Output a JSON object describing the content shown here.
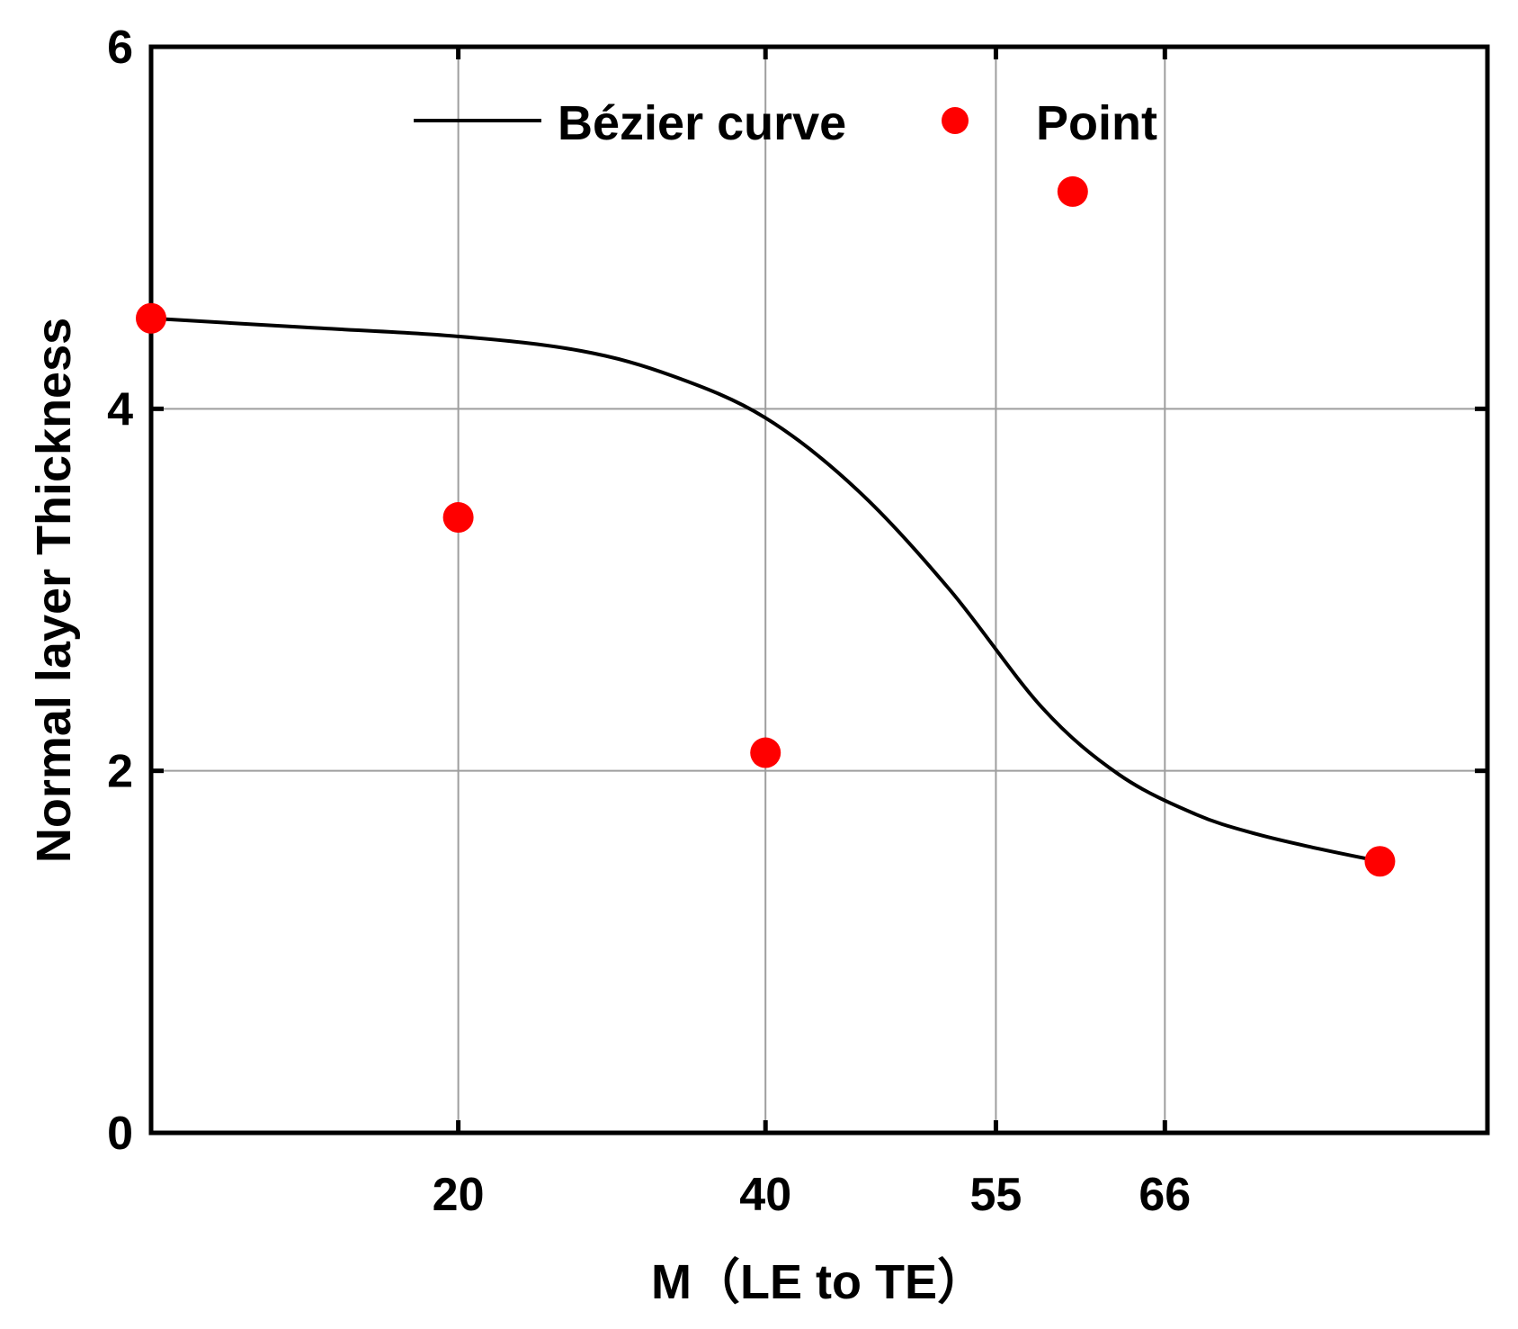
{
  "chart_data": {
    "type": "line",
    "xlabel": "M（LE to TE）",
    "ylabel": "Normal layer Thickness",
    "x_ticks": [
      20,
      40,
      55,
      66
    ],
    "y_ticks": [
      0,
      2,
      4,
      6
    ],
    "x_tick_labels": [
      "20",
      "40",
      "55",
      "66"
    ],
    "y_tick_labels": [
      "0",
      "2",
      "4",
      "6"
    ],
    "xlim": [
      0,
      87
    ],
    "ylim": [
      0,
      6
    ],
    "grid": true,
    "legend_position": "top",
    "series": [
      {
        "name": "Bézier curve",
        "kind": "line",
        "color": "#000000",
        "x": [
          0,
          10,
          20,
          28,
          34,
          40,
          46,
          52,
          58,
          63,
          68,
          72,
          76,
          80
        ],
        "y": [
          4.5,
          4.45,
          4.4,
          4.32,
          4.18,
          3.95,
          3.55,
          3.0,
          2.35,
          1.98,
          1.76,
          1.65,
          1.57,
          1.5
        ]
      },
      {
        "name": "Point",
        "kind": "scatter",
        "color": "#ff0000",
        "x": [
          0,
          20,
          40,
          60,
          80
        ],
        "y": [
          4.5,
          3.4,
          2.1,
          5.2,
          1.5
        ]
      }
    ]
  }
}
